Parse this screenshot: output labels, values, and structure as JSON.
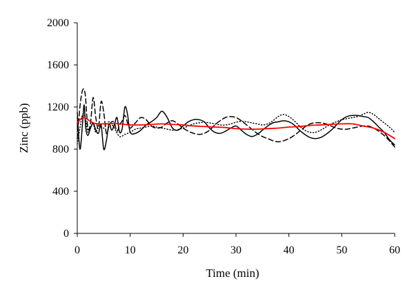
{
  "chart_data": {
    "type": "line",
    "title": "",
    "xlabel": "Time (min)",
    "ylabel": "Zinc (ppb)",
    "xlim": [
      0,
      60
    ],
    "ylim": [
      0,
      2000
    ],
    "xticks": [
      0,
      10,
      20,
      30,
      40,
      50,
      60
    ],
    "yticks": [
      0,
      400,
      800,
      1200,
      1600,
      2000
    ],
    "grid": false,
    "legend": "none",
    "series": [
      {
        "style": "solid",
        "color": "#000000",
        "x": [
          0,
          0.5,
          1,
          1.3,
          1.6,
          2,
          2.5,
          3,
          3.5,
          4,
          4.5,
          5,
          5.5,
          6,
          6.5,
          7,
          7.5,
          8,
          8.5,
          9,
          9.5,
          10,
          11,
          12,
          13,
          14,
          15,
          16,
          17,
          18,
          19,
          20,
          21,
          22,
          23,
          24,
          25,
          26,
          27,
          28,
          29,
          30,
          31,
          32,
          33,
          34,
          35,
          36,
          37,
          38,
          39,
          40,
          41,
          42,
          43,
          44,
          45,
          46,
          47,
          48,
          49,
          50,
          51,
          52,
          53,
          54,
          55,
          56,
          57,
          58,
          59,
          60
        ],
        "y": [
          1150,
          800,
          1050,
          1220,
          1000,
          930,
          1000,
          1050,
          980,
          950,
          1030,
          800,
          880,
          1040,
          980,
          1030,
          1100,
          960,
          1000,
          1200,
          1130,
          960,
          950,
          980,
          1030,
          1060,
          1100,
          1160,
          1100,
          1000,
          980,
          1020,
          1060,
          1080,
          1080,
          1060,
          1000,
          960,
          950,
          970,
          1000,
          1020,
          980,
          940,
          920,
          940,
          980,
          1020,
          1050,
          1060,
          1070,
          1060,
          1030,
          980,
          940,
          910,
          900,
          910,
          940,
          980,
          1030,
          1080,
          1110,
          1120,
          1120,
          1110,
          1100,
          1060,
          1010,
          960,
          890,
          840
        ]
      },
      {
        "style": "dashed",
        "color": "#000000",
        "x": [
          0,
          0.5,
          1,
          1.5,
          2,
          2.5,
          3,
          3.5,
          4,
          4.5,
          5,
          5.5,
          6,
          6.5,
          7,
          7.5,
          8,
          8.5,
          9,
          9.5,
          10,
          11,
          12,
          13,
          14,
          15,
          16,
          17,
          18,
          19,
          20,
          21,
          22,
          23,
          24,
          25,
          26,
          27,
          28,
          29,
          30,
          31,
          32,
          33,
          34,
          35,
          36,
          37,
          38,
          39,
          40,
          41,
          42,
          43,
          44,
          45,
          46,
          47,
          48,
          49,
          50,
          51,
          52,
          53,
          54,
          55,
          56,
          57,
          58,
          59,
          60
        ],
        "y": [
          900,
          1200,
          1360,
          1320,
          1000,
          1050,
          1290,
          1100,
          1000,
          1250,
          1150,
          950,
          1020,
          1060,
          1050,
          970,
          1030,
          1070,
          1120,
          1050,
          1000,
          1050,
          1100,
          1080,
          1020,
          1000,
          1010,
          1050,
          1070,
          1040,
          1000,
          970,
          950,
          940,
          950,
          980,
          1030,
          1070,
          1100,
          1110,
          1100,
          1070,
          1030,
          990,
          950,
          920,
          900,
          880,
          870,
          880,
          900,
          930,
          970,
          1010,
          1040,
          1050,
          1050,
          1040,
          1020,
          1000,
          990,
          990,
          1000,
          1010,
          1020,
          1020,
          1000,
          970,
          930,
          880,
          820
        ]
      },
      {
        "style": "dotted",
        "color": "#000000",
        "x": [
          0,
          0.5,
          1,
          1.5,
          2,
          2.5,
          3,
          3.5,
          4,
          5,
          6,
          7,
          8,
          9,
          10,
          11,
          12,
          13,
          14,
          15,
          16,
          17,
          18,
          19,
          20,
          21,
          22,
          23,
          24,
          25,
          26,
          27,
          28,
          29,
          30,
          31,
          32,
          33,
          34,
          35,
          36,
          37,
          38,
          39,
          40,
          41,
          42,
          43,
          44,
          45,
          46,
          47,
          48,
          49,
          50,
          51,
          52,
          53,
          54,
          55,
          56,
          57,
          58,
          59,
          60
        ],
        "y": [
          850,
          1000,
          1130,
          1100,
          960,
          1000,
          1040,
          960,
          1020,
          1000,
          1060,
          1000,
          920,
          940,
          960,
          990,
          1000,
          1010,
          1020,
          1010,
          1000,
          990,
          980,
          985,
          1000,
          1020,
          1040,
          1050,
          1055,
          1050,
          1040,
          1030,
          1030,
          1040,
          1055,
          1065,
          1060,
          1050,
          1040,
          1030,
          1040,
          1070,
          1110,
          1130,
          1110,
          1070,
          1020,
          980,
          960,
          960,
          980,
          1010,
          1040,
          1060,
          1080,
          1090,
          1100,
          1110,
          1130,
          1150,
          1130,
          1090,
          1050,
          1010,
          960
        ]
      },
      {
        "style": "solid",
        "color": "#ff0000",
        "x": [
          0,
          1,
          2,
          3,
          4,
          5,
          6,
          7,
          8,
          9,
          10,
          12,
          14,
          16,
          18,
          20,
          22,
          24,
          26,
          28,
          30,
          32,
          34,
          36,
          38,
          40,
          42,
          44,
          46,
          48,
          50,
          52,
          54,
          56,
          58,
          60
        ],
        "y": [
          1050,
          1100,
          1080,
          1050,
          1040,
          1040,
          1040,
          1045,
          1040,
          1035,
          1030,
          1030,
          1035,
          1040,
          1035,
          1030,
          1020,
          1015,
          1010,
          1005,
          995,
          990,
          990,
          995,
          1000,
          1010,
          1015,
          1025,
          1030,
          1035,
          1040,
          1040,
          1020,
          1000,
          960,
          900
        ]
      }
    ]
  }
}
